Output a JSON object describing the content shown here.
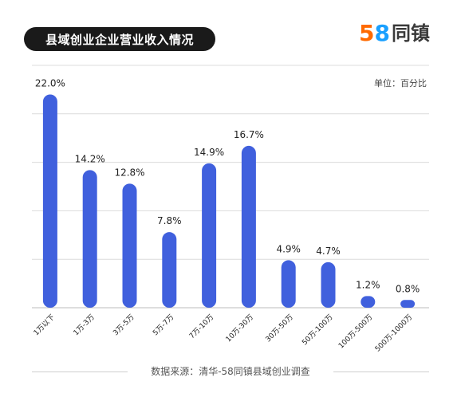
{
  "header": {
    "title": "县域创业企业营业收入情况",
    "logo_digits": [
      "5",
      "8"
    ],
    "logo_name": "同镇"
  },
  "footer": {
    "source": "数据来源：清华-58同镇县域创业调查"
  },
  "colors": {
    "bar": "#4060dd",
    "title_bg": "#1a1a1a",
    "grid": "#dcdcdc",
    "logo_five": "#ff6a00",
    "logo_eight": "#1aa0ff"
  },
  "chart_data": {
    "type": "bar",
    "title": "县域创业企业营业收入情况",
    "unit_label": "单位：百分比",
    "categories": [
      "1万以下",
      "1万-3万",
      "3万-5万",
      "5万-7万",
      "7万-10万",
      "10万-30万",
      "30万-50万",
      "50万-100万",
      "100万-500万",
      "500万-1000万"
    ],
    "values": [
      22.0,
      14.2,
      12.8,
      7.8,
      14.9,
      16.7,
      4.9,
      4.7,
      1.2,
      0.8
    ],
    "data_labels": [
      "22.0%",
      "14.2%",
      "12.8%",
      "7.8%",
      "14.9%",
      "16.7%",
      "4.9%",
      "4.7%",
      "1.2%",
      "0.8%"
    ],
    "ylim": [
      0,
      25
    ],
    "grid": true,
    "xlabel": "",
    "ylabel": ""
  }
}
